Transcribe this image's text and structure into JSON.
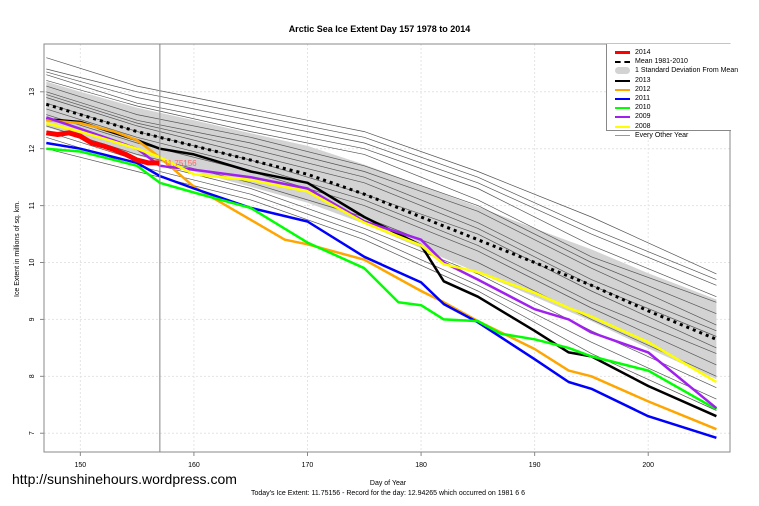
{
  "chart_data": {
    "type": "line",
    "title": "Arctic Sea Ice Extent Day 157 1978 to 2014",
    "xlabel": "Day of Year",
    "ylabel": "Ice Extent in millions of sq. km.",
    "subtitle": "Today's Ice Extent: 11.75156  - Record for the day: 12.94265 which occurred on 1981 6 6",
    "xlim": [
      146.8,
      207.2
    ],
    "ylim": [
      6.67,
      13.84
    ],
    "x_ticks": [
      150,
      160,
      170,
      180,
      190,
      200
    ],
    "y_ticks": [
      7,
      8,
      9,
      10,
      11,
      12,
      13
    ],
    "grid": true,
    "legend_position": "top-right",
    "current_day": 157,
    "current_label": "11.75156",
    "mean": {
      "name": "Mean 1981-2010",
      "x": [
        147,
        150,
        155,
        160,
        165,
        170,
        175,
        180,
        185,
        190,
        195,
        200,
        206
      ],
      "values": [
        12.78,
        12.6,
        12.3,
        12.05,
        11.8,
        11.55,
        11.2,
        10.8,
        10.4,
        10.0,
        9.6,
        9.15,
        8.65
      ],
      "sd": [
        0.4,
        0.4,
        0.42,
        0.45,
        0.47,
        0.5,
        0.52,
        0.55,
        0.58,
        0.6,
        0.63,
        0.66,
        0.7
      ]
    },
    "sd_label": "1 Standard Deviation From Mean",
    "series": [
      {
        "name": "2013",
        "color": "#000000",
        "x": [
          147,
          150,
          155,
          157,
          160,
          165,
          170,
          175,
          180,
          182,
          185,
          190,
          193,
          195,
          200,
          206
        ],
        "values": [
          12.52,
          12.47,
          12.15,
          12.0,
          11.9,
          11.6,
          11.4,
          10.8,
          10.3,
          9.67,
          9.4,
          8.8,
          8.42,
          8.35,
          7.83,
          7.3
        ]
      },
      {
        "name": "2012",
        "color": "#ffa500",
        "x": [
          147,
          150,
          153,
          155,
          157,
          160,
          165,
          168,
          170,
          175,
          180,
          182,
          185,
          190,
          193,
          195,
          200,
          206
        ],
        "values": [
          12.5,
          12.45,
          12.3,
          12.15,
          11.85,
          11.33,
          10.75,
          10.4,
          10.32,
          10.05,
          9.5,
          9.3,
          8.97,
          8.48,
          8.1,
          8.0,
          7.56,
          7.07
        ]
      },
      {
        "name": "2011",
        "color": "#0000ff",
        "x": [
          147,
          150,
          153,
          155,
          157,
          160,
          165,
          170,
          175,
          180,
          182,
          185,
          190,
          193,
          195,
          200,
          206
        ],
        "values": [
          12.1,
          12.0,
          11.85,
          11.75,
          11.52,
          11.3,
          10.96,
          10.72,
          10.1,
          9.65,
          9.27,
          8.95,
          8.3,
          7.9,
          7.78,
          7.3,
          6.92
        ]
      },
      {
        "name": "2010",
        "color": "#00ff00",
        "x": [
          147,
          150,
          152,
          155,
          157,
          160,
          165,
          170,
          175,
          178,
          180,
          182,
          185,
          187,
          190,
          193,
          195,
          200,
          206
        ],
        "values": [
          12.0,
          11.95,
          11.85,
          11.7,
          11.4,
          11.23,
          10.96,
          10.35,
          9.9,
          9.3,
          9.25,
          9.0,
          8.97,
          8.75,
          8.65,
          8.5,
          8.35,
          8.1,
          7.42
        ]
      },
      {
        "name": "2009",
        "color": "#a020f0",
        "x": [
          147,
          150,
          155,
          157,
          160,
          165,
          170,
          175,
          180,
          182,
          185,
          190,
          193,
          195,
          200,
          206
        ],
        "values": [
          12.55,
          12.35,
          12.0,
          11.7,
          11.63,
          11.5,
          11.3,
          10.72,
          10.4,
          10.0,
          9.7,
          9.18,
          9.0,
          8.77,
          8.42,
          7.44
        ]
      },
      {
        "name": "2008",
        "color": "#ffff00",
        "x": [
          147,
          150,
          155,
          157,
          160,
          165,
          170,
          175,
          180,
          182,
          185,
          190,
          193,
          195,
          200,
          206
        ],
        "values": [
          12.45,
          12.3,
          12.0,
          11.85,
          11.55,
          11.45,
          11.25,
          10.7,
          10.3,
          9.97,
          9.83,
          9.47,
          9.2,
          9.05,
          8.6,
          7.9
        ]
      },
      {
        "name": "2014",
        "color": "#ff0000",
        "x": [
          147,
          148,
          149,
          150,
          151,
          152,
          153,
          154,
          155,
          156,
          157
        ],
        "values": [
          12.28,
          12.25,
          12.28,
          12.22,
          12.1,
          12.05,
          11.98,
          11.9,
          11.8,
          11.75,
          11.75
        ]
      }
    ],
    "other_years": {
      "name": "Every Other Year",
      "color": "#555555",
      "x": [
        147,
        155,
        165,
        175,
        185,
        195,
        206
      ],
      "lines": [
        [
          13.6,
          13.1,
          12.7,
          12.3,
          11.6,
          10.8,
          9.8
        ],
        [
          13.4,
          13.0,
          12.6,
          12.2,
          11.5,
          10.6,
          9.7
        ],
        [
          13.35,
          12.9,
          12.5,
          12.1,
          11.4,
          10.5,
          9.6
        ],
        [
          13.3,
          12.8,
          12.4,
          12.0,
          11.3,
          10.3,
          9.4
        ],
        [
          13.2,
          12.75,
          12.3,
          11.9,
          11.1,
          10.1,
          9.3
        ],
        [
          13.1,
          12.6,
          12.2,
          11.7,
          11.0,
          10.0,
          9.1
        ],
        [
          13.0,
          12.5,
          12.1,
          11.6,
          10.9,
          9.9,
          8.9
        ],
        [
          12.95,
          12.45,
          12.0,
          11.5,
          10.7,
          9.7,
          8.8
        ],
        [
          12.9,
          12.4,
          11.9,
          11.4,
          10.6,
          9.6,
          8.7
        ],
        [
          12.8,
          12.3,
          11.8,
          11.2,
          10.5,
          9.5,
          8.5
        ],
        [
          12.7,
          12.2,
          11.7,
          11.1,
          10.3,
          9.3,
          8.4
        ],
        [
          12.6,
          12.1,
          11.6,
          11.0,
          10.2,
          9.2,
          8.2
        ],
        [
          12.4,
          11.9,
          11.4,
          10.8,
          10.0,
          9.0,
          8.0
        ],
        [
          12.3,
          11.8,
          11.3,
          10.6,
          9.8,
          8.8,
          7.8
        ],
        [
          12.2,
          11.7,
          11.2,
          10.5,
          9.6,
          8.6,
          7.6
        ],
        [
          12.0,
          11.6,
          11.1,
          10.4,
          9.5,
          8.4,
          7.4
        ]
      ]
    }
  },
  "legend": [
    {
      "label": "2014",
      "color": "#ff0000",
      "style": "thick"
    },
    {
      "label": "Mean 1981-2010",
      "color": "#000000",
      "style": "dotted"
    },
    {
      "label": "1 Standard Deviation From Mean",
      "color": "#d3d3d3",
      "style": "band"
    },
    {
      "label": "2013",
      "color": "#000000",
      "style": "line"
    },
    {
      "label": "2012",
      "color": "#ffa500",
      "style": "line"
    },
    {
      "label": "2011",
      "color": "#0000ff",
      "style": "line"
    },
    {
      "label": "2010",
      "color": "#00ff00",
      "style": "line"
    },
    {
      "label": "2009",
      "color": "#a020f0",
      "style": "line"
    },
    {
      "label": "2008",
      "color": "#ffff00",
      "style": "line"
    },
    {
      "label": "Every Other Year",
      "color": "#999999",
      "style": "thin"
    }
  ],
  "footer": {
    "site": "http://sunshinehours.wordpress.com"
  }
}
